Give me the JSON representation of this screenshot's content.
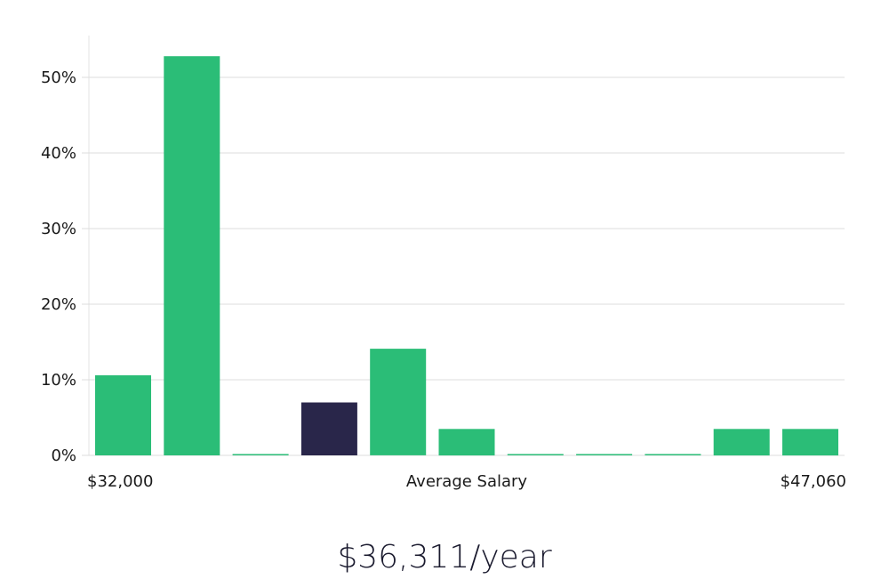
{
  "chart_data": {
    "type": "bar",
    "title": "",
    "xlabel": "Average Salary",
    "ylabel": "",
    "x_range_labels": {
      "min": "$32,000",
      "max": "$47,060"
    },
    "y_ticks": [
      "0%",
      "10%",
      "20%",
      "30%",
      "40%",
      "50%"
    ],
    "ylim": [
      0,
      55
    ],
    "values": [
      10.6,
      52.8,
      0,
      7.0,
      14.1,
      3.5,
      0,
      0,
      0,
      3.5,
      3.5
    ],
    "highlight_index": 3,
    "grid": true,
    "colors": {
      "bar": "#2bbd77",
      "highlight": "#29264a",
      "grid": "#dddddd",
      "axis": "#e3e3e3"
    }
  },
  "salary_caption": "$36,311/year"
}
